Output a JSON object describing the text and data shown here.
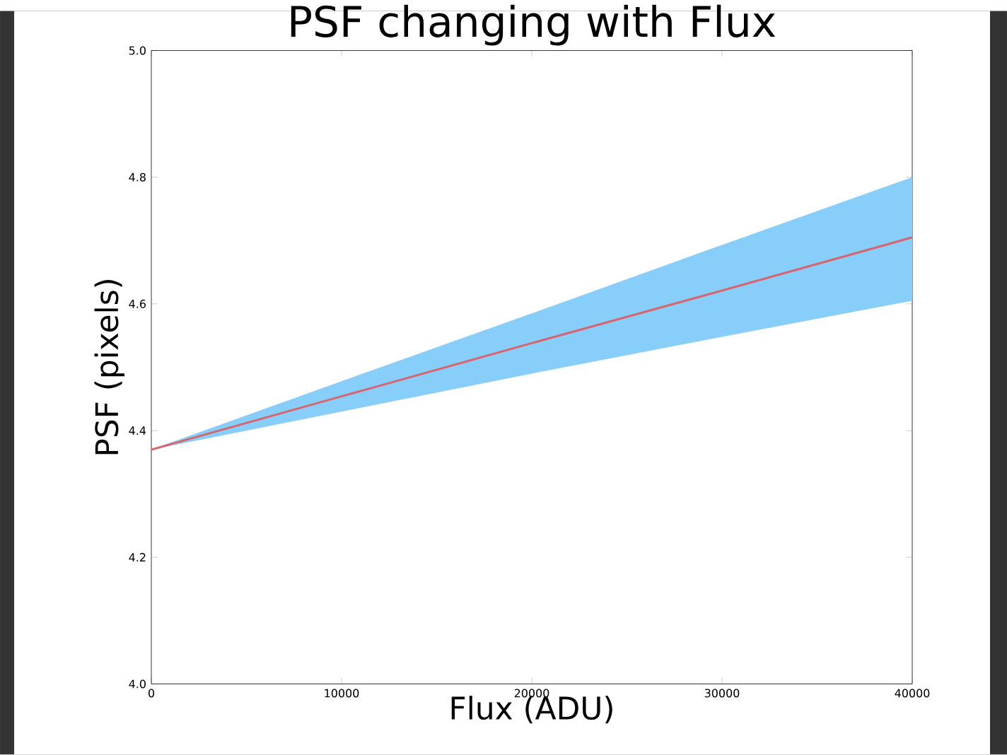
{
  "chart_data": {
    "type": "line",
    "title": "PSF changing with Flux",
    "xlabel": "Flux (ADU)",
    "ylabel": "PSF (pixels)",
    "x": [
      0,
      10000,
      20000,
      30000,
      40000
    ],
    "series": [
      {
        "color": "#d9646e",
        "values": [
          4.37,
          4.454,
          4.538,
          4.621,
          4.705
        ],
        "lower": [
          4.37,
          4.43,
          4.49,
          4.548,
          4.605
        ],
        "upper": [
          4.37,
          4.478,
          4.585,
          4.693,
          4.8
        ]
      }
    ],
    "xlim": [
      0,
      40000
    ],
    "ylim": [
      4.0,
      5.0
    ],
    "xticks": [
      0,
      10000,
      20000,
      30000,
      40000
    ],
    "yticks": [
      {
        "value": 4.0,
        "label": "4.0"
      },
      4.2,
      4.4,
      4.6,
      4.8,
      {
        "value": 5.0,
        "label": "5.0"
      }
    ]
  }
}
